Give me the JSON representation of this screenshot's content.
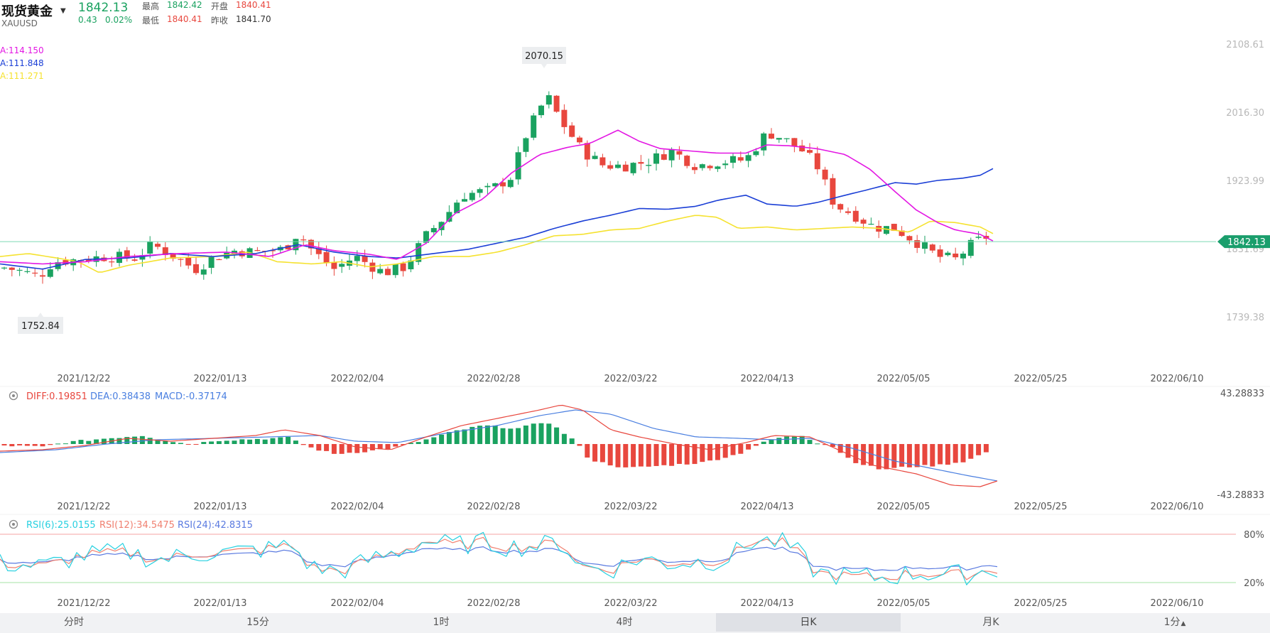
{
  "instrument": {
    "name": "现货黄金",
    "symbol": "XAUUSD",
    "price": "1842.13",
    "change": "0.43",
    "change_pct": "0.02%"
  },
  "quote": {
    "high_label": "最高",
    "high": "1842.42",
    "open_label": "开盘",
    "open": "1840.41",
    "low_label": "最低",
    "low": "1840.41",
    "prev_close_label": "昨收",
    "prev_close": "1841.70"
  },
  "ma_legend": [
    {
      "text": "A:114.150",
      "color": "#e317e3"
    },
    {
      "text": "A:111.848",
      "color": "#1b3fd6"
    },
    {
      "text": "A:111.271",
      "color": "#f5e230"
    }
  ],
  "colors": {
    "up": "#1aa260",
    "down": "#e8473e",
    "ma1": "#e317e3",
    "ma2": "#1b3fd6",
    "ma3": "#f5e230",
    "diff": "#e8473e",
    "dea": "#4a7fe0",
    "rsi6": "#27d0e0",
    "rsi12": "#f08070",
    "rsi24": "#5a7ae0",
    "price_line": "#7ed9b4"
  },
  "main_chart": {
    "price_axis": [
      "2108.61",
      "2016.30",
      "1923.99",
      "1831.69",
      "1739.38"
    ],
    "current_price_tag": "1842.13",
    "max_callout": "2070.15",
    "min_callout": "1752.84",
    "date_labels": [
      "2021/12/22",
      "2022/01/13",
      "2022/02/04",
      "2022/02/28",
      "2022/03/22",
      "2022/04/13",
      "2022/05/05",
      "2022/05/25",
      "2022/06/10"
    ]
  },
  "macd": {
    "legend": {
      "diff": "DIFF:0.19851",
      "dea": "DEA:0.38438",
      "macd": "MACD:-0.37174"
    },
    "axis": [
      "43.28833",
      "-43.28833"
    ],
    "settings_icon": "gear-icon"
  },
  "rsi": {
    "legend": {
      "rsi6": "RSI(6):25.0155",
      "rsi12": "RSI(12):34.5475",
      "rsi24": "RSI(24):42.8315"
    },
    "axis": [
      "80%",
      "20%"
    ],
    "settings_icon": "gear-icon"
  },
  "periods": [
    {
      "label": "分时",
      "active": false
    },
    {
      "label": "15分",
      "active": false
    },
    {
      "label": "1时",
      "active": false
    },
    {
      "label": "4时",
      "active": false
    },
    {
      "label": "日K",
      "active": true
    },
    {
      "label": "月K",
      "active": false
    },
    {
      "label": "1分",
      "active": false
    }
  ],
  "period_more_icon": "triangle-up-icon"
}
